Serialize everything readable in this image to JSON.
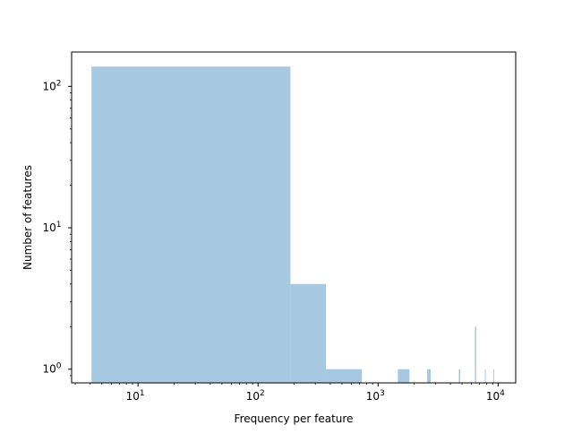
{
  "chart_data": {
    "type": "bar",
    "subtype": "histogram",
    "xlabel": "Frequency per feature",
    "ylabel": "Number of features",
    "x_scale": "log",
    "y_scale": "log",
    "xlim": [
      2.8,
      14000
    ],
    "ylim": [
      0.8,
      175
    ],
    "grid": false,
    "bar_color": "#a6c8e0",
    "x_ticks": [
      {
        "value": 10,
        "base": "10",
        "exp": "1"
      },
      {
        "value": 100,
        "base": "10",
        "exp": "2"
      },
      {
        "value": 1000,
        "base": "10",
        "exp": "3"
      },
      {
        "value": 10000,
        "base": "10",
        "exp": "4"
      }
    ],
    "y_ticks": [
      {
        "value": 1,
        "base": "10",
        "exp": "0"
      },
      {
        "value": 10,
        "base": "10",
        "exp": "1"
      },
      {
        "value": 100,
        "base": "10",
        "exp": "2"
      }
    ],
    "bins": [
      {
        "x0": 4.1,
        "x1": 186,
        "count": 138
      },
      {
        "x0": 186,
        "x1": 368,
        "count": 4
      },
      {
        "x0": 368,
        "x1": 732,
        "count": 1
      },
      {
        "x0": 1460,
        "x1": 1825,
        "count": 1
      },
      {
        "x0": 2560,
        "x1": 2740,
        "count": 1
      },
      {
        "x0": 4700,
        "x1": 4830,
        "count": 1
      },
      {
        "x0": 6400,
        "x1": 6560,
        "count": 2
      },
      {
        "x0": 7750,
        "x1": 7850,
        "count": 1
      },
      {
        "x0": 9100,
        "x1": 9200,
        "count": 1
      }
    ]
  }
}
